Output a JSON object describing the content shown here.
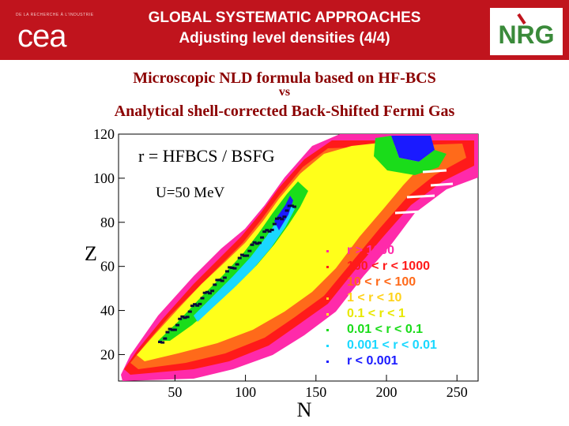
{
  "header": {
    "logo_tagline": "DE LA RECHERCHE À L'INDUSTRIE",
    "logo_left": "cea",
    "title_line1": "GLOBAL SYSTEMATIC APPROACHES",
    "title_line2": "Adjusting level densities (4/4)",
    "logo_right": "NRG"
  },
  "subtitle": {
    "line1": "Microscopic NLD formula based on HF-BCS",
    "line2": "vs",
    "line3": "Analytical shell-corrected Back-Shifted Fermi Gas"
  },
  "colors": {
    "banner": "#c0141d",
    "subtitle": "#8b0000",
    "legend_text": "#c01080"
  },
  "chart_data": {
    "type": "heatmap",
    "ratio_label": "r = HFBCS / BSFG",
    "energy_label": "U=50 MeV",
    "xlabel": "N",
    "ylabel": "Z",
    "xlim": [
      10,
      265
    ],
    "ylim": [
      8,
      120
    ],
    "x_ticks": [
      50,
      100,
      150,
      200,
      250
    ],
    "y_ticks": [
      20,
      40,
      60,
      80,
      100,
      120
    ],
    "legend": [
      {
        "label": "r > 1000",
        "color": "#ff2aaa"
      },
      {
        "label": "100 < r < 1000",
        "color": "#ff1a1a"
      },
      {
        "label": "10 < r < 100",
        "color": "#ff6a1a"
      },
      {
        "label": "1 < r < 10",
        "color": "#ffd21a"
      },
      {
        "label": "0.1 < r < 1",
        "color": "#ffff1a"
      },
      {
        "label": "0.01 < r < 0.1",
        "color": "#1adc1a"
      },
      {
        "label": "0.001 < r < 0.01",
        "color": "#1ad8ff"
      },
      {
        "label": "r < 0.001",
        "color": "#1a1aff"
      }
    ]
  }
}
